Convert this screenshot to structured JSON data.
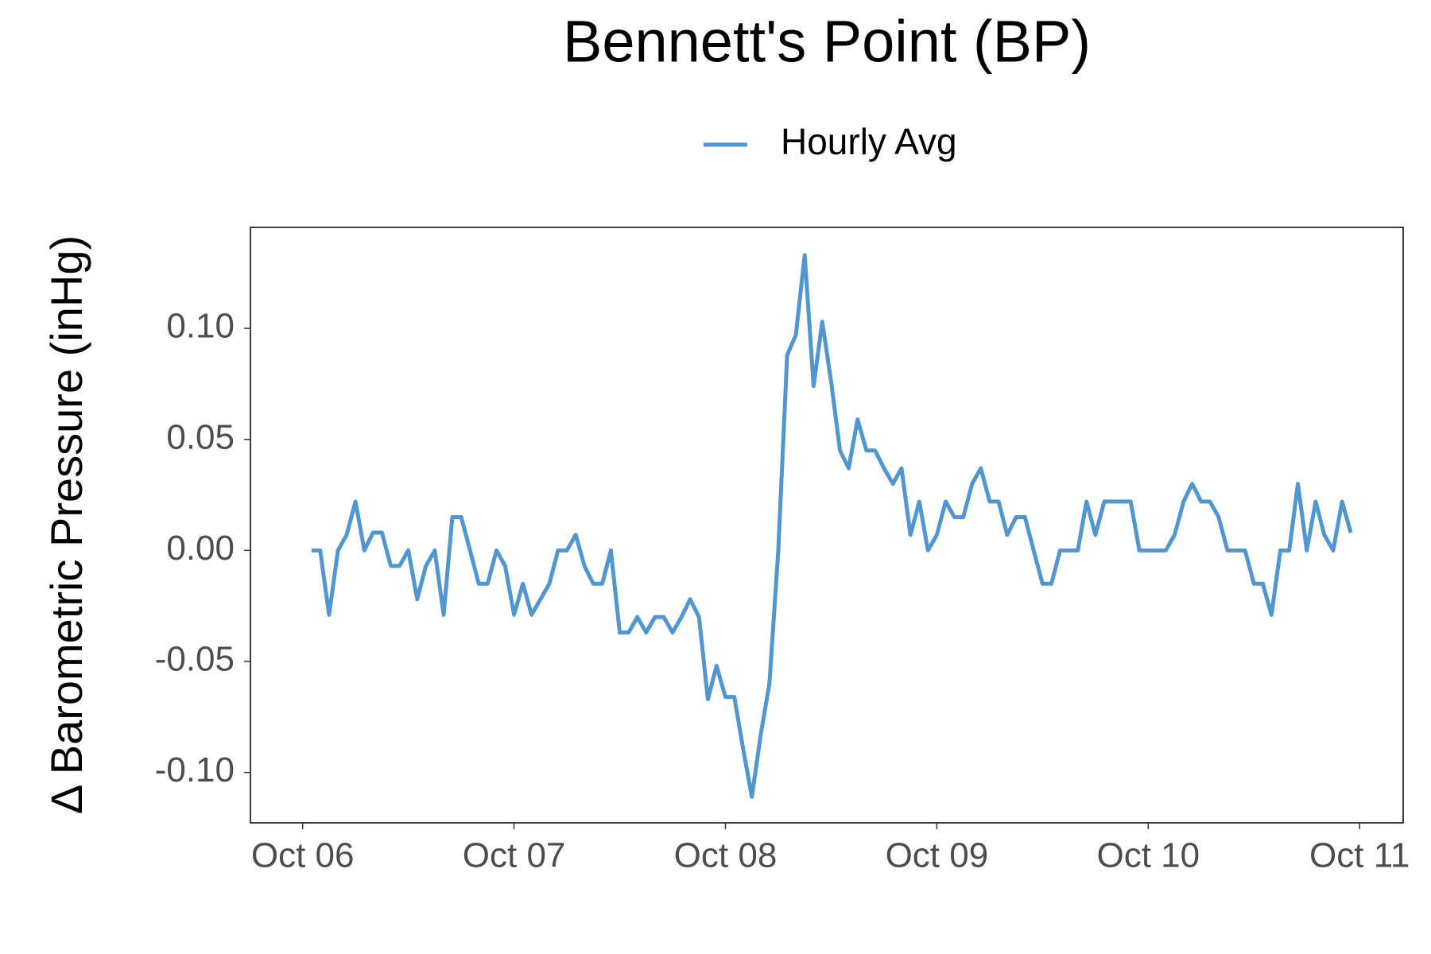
{
  "chart_data": {
    "type": "line",
    "title": "Bennett's Point (BP)",
    "y_label": "Δ Barometric Pressure (inHg)",
    "legend_position": "top",
    "x": [
      6.042,
      6.083,
      6.125,
      6.167,
      6.208,
      6.25,
      6.292,
      6.333,
      6.375,
      6.417,
      6.458,
      6.5,
      6.542,
      6.583,
      6.625,
      6.667,
      6.708,
      6.75,
      6.792,
      6.833,
      6.875,
      6.917,
      6.958,
      7,
      7.042,
      7.083,
      7.125,
      7.167,
      7.208,
      7.25,
      7.292,
      7.333,
      7.375,
      7.417,
      7.458,
      7.5,
      7.542,
      7.583,
      7.625,
      7.667,
      7.708,
      7.75,
      7.792,
      7.833,
      7.875,
      7.917,
      7.958,
      8,
      8.042,
      8.083,
      8.125,
      8.167,
      8.208,
      8.25,
      8.292,
      8.333,
      8.375,
      8.417,
      8.458,
      8.5,
      8.542,
      8.583,
      8.625,
      8.667,
      8.708,
      8.75,
      8.792,
      8.833,
      8.875,
      8.917,
      8.958,
      9,
      9.042,
      9.083,
      9.125,
      9.167,
      9.208,
      9.25,
      9.292,
      9.333,
      9.375,
      9.417,
      9.458,
      9.5,
      9.542,
      9.583,
      9.625,
      9.667,
      9.708,
      9.75,
      9.792,
      9.833,
      9.875,
      9.917,
      9.958,
      10,
      10.042,
      10.083,
      10.125,
      10.167,
      10.208,
      10.25,
      10.292,
      10.333,
      10.375,
      10.417,
      10.458,
      10.5,
      10.542,
      10.583,
      10.625,
      10.667,
      10.708,
      10.75,
      10.792,
      10.833,
      10.875,
      10.917,
      10.958
    ],
    "series": [
      {
        "name": "Hourly Avg",
        "color": "#5096d0",
        "values": [
          0,
          0,
          -0.029,
          0,
          0.007,
          0.022,
          0,
          0.008,
          0.008,
          -0.007,
          -0.007,
          0,
          -0.022,
          -0.007,
          0,
          -0.029,
          0.015,
          0.015,
          0,
          -0.015,
          -0.015,
          0,
          -0.007,
          -0.029,
          -0.015,
          -0.029,
          -0.022,
          -0.015,
          0,
          0,
          0.007,
          -0.007,
          -0.015,
          -0.015,
          0,
          -0.037,
          -0.037,
          -0.03,
          -0.037,
          -0.03,
          -0.03,
          -0.037,
          -0.03,
          -0.022,
          -0.03,
          -0.067,
          -0.052,
          -0.066,
          -0.066,
          -0.089,
          -0.111,
          -0.083,
          -0.06,
          0,
          0.088,
          0.097,
          0.133,
          0.074,
          0.103,
          0.076,
          0.045,
          0.037,
          0.059,
          0.045,
          0.045,
          0.037,
          0.03,
          0.037,
          0.007,
          0.022,
          0,
          0.007,
          0.022,
          0.015,
          0.015,
          0.03,
          0.037,
          0.022,
          0.022,
          0.007,
          0.015,
          0.015,
          0,
          -0.015,
          -0.015,
          0,
          0,
          0,
          0.022,
          0.007,
          0.022,
          0.022,
          0.022,
          0.022,
          0,
          0,
          0,
          0,
          0.007,
          0.022,
          0.03,
          0.022,
          0.022,
          0.015,
          0,
          0,
          0,
          -0.015,
          -0.015,
          -0.029,
          0,
          0,
          0.03,
          0,
          0.022,
          0.007,
          0,
          0.022,
          0.008
        ]
      }
    ],
    "xlim": [
      5.753,
      11.206
    ],
    "xticks": [
      {
        "value": 6,
        "label": "Oct 06"
      },
      {
        "value": 7,
        "label": "Oct 07"
      },
      {
        "value": 8,
        "label": "Oct 08"
      },
      {
        "value": 9,
        "label": "Oct 09"
      },
      {
        "value": 10,
        "label": "Oct 10"
      },
      {
        "value": 11,
        "label": "Oct 11"
      }
    ],
    "ylim": [
      -0.1227,
      0.1455
    ],
    "yticks": [
      {
        "value": -0.1,
        "label": "-0.10"
      },
      -0.05,
      {
        "value": 0,
        "label": "0.00"
      },
      0.05,
      {
        "value": 0.1,
        "label": "0.10"
      }
    ],
    "grid": false
  }
}
